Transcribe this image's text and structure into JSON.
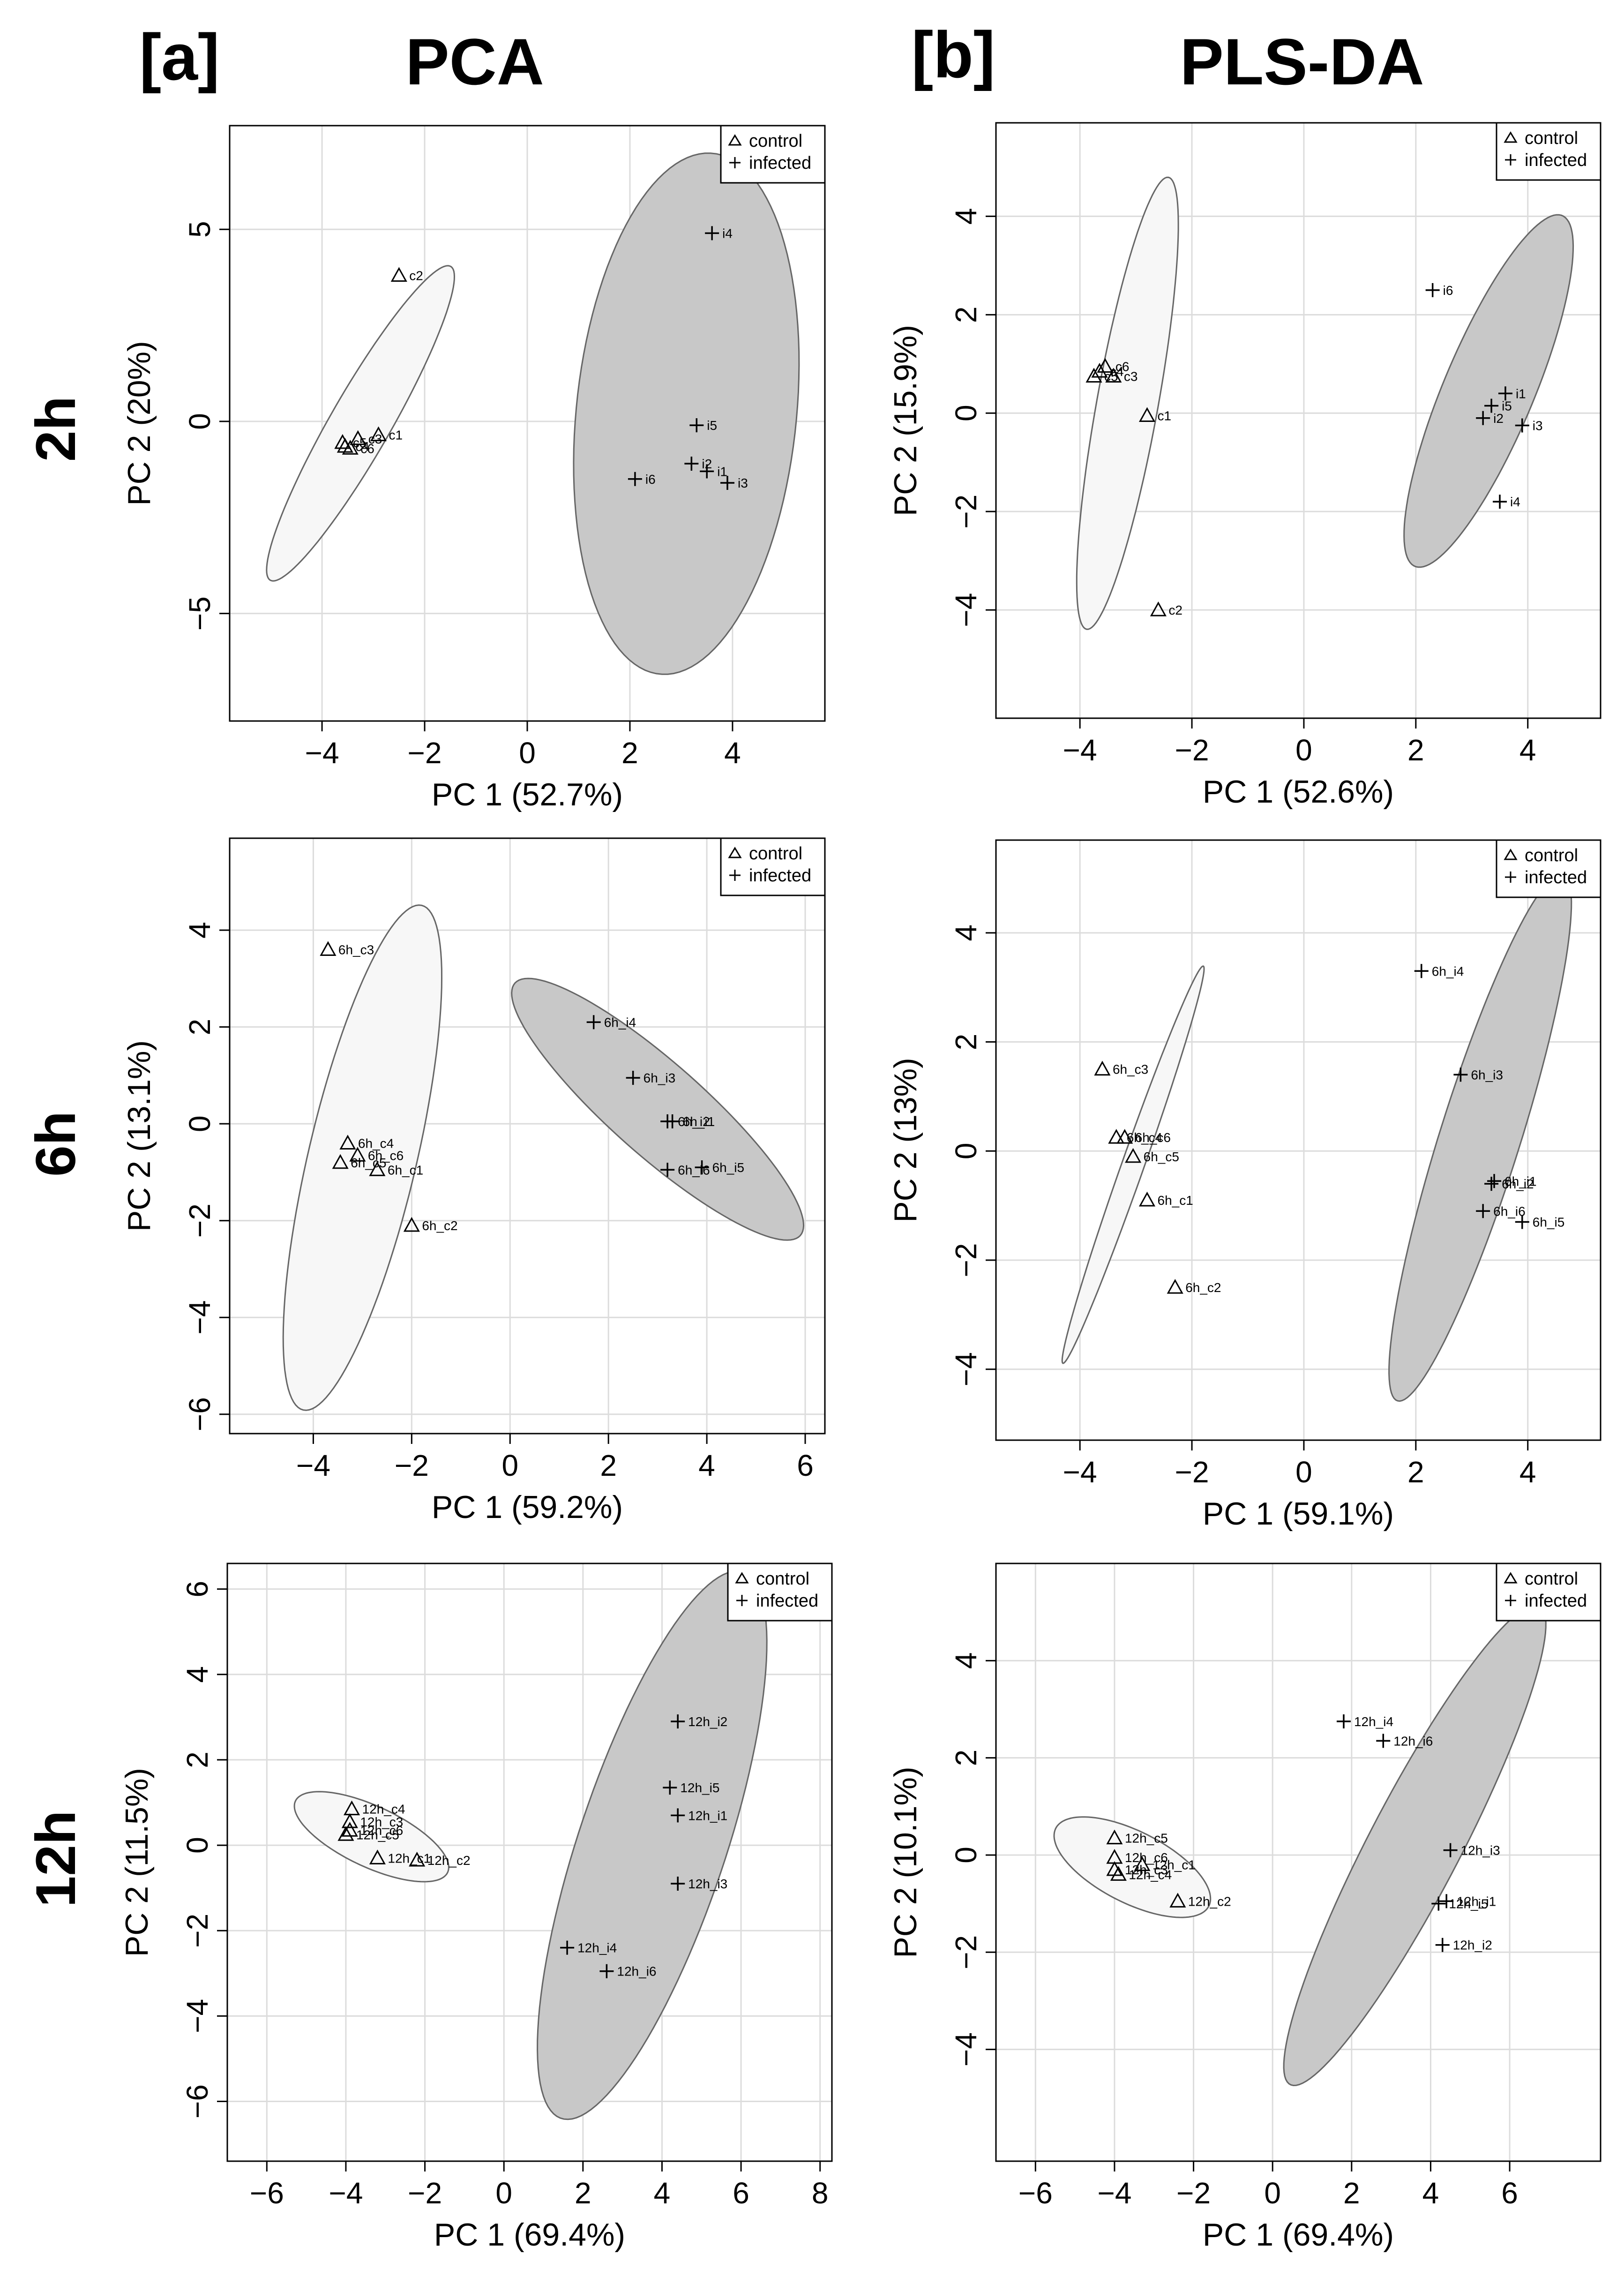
{
  "figure": {
    "headers": {
      "a_tag": "[a]",
      "a_title": "PCA",
      "b_tag": "[b]",
      "b_title": "PLS-DA"
    },
    "row_labels": [
      "2h",
      "6h",
      "12h"
    ]
  },
  "legend": {
    "control": "control",
    "infected": "infected"
  },
  "colors": {
    "control_fill": "#f7f7f7",
    "infected_fill": "#c8c8c8",
    "ellipse_stroke": "#666666",
    "grid": "#dcdcdc"
  },
  "chart_data": [
    {
      "type": "scatter",
      "id": "pca_2h",
      "xlabel": "PC 1 (52.7%)",
      "ylabel": "PC 2 (20%)",
      "xlim": [
        -5.8,
        5.8
      ],
      "ylim": [
        -7.8,
        7.7
      ],
      "xticks": [
        -4,
        -2,
        0,
        2,
        4
      ],
      "yticks": [
        -5,
        0,
        5
      ],
      "xtick_labels": [
        "−4",
        "−2",
        "0",
        "2",
        "4"
      ],
      "ytick_labels": [
        "−5",
        "0",
        "5"
      ],
      "groups": [
        {
          "name": "control",
          "marker": "triangle",
          "ellipse": {
            "cx": -3.25,
            "cy": -0.05,
            "rx": 4.45,
            "ry": 0.62,
            "angle": 67
          },
          "points": [
            {
              "label": "c1",
              "x": -2.9,
              "y": -0.35
            },
            {
              "label": "c2",
              "x": -2.5,
              "y": 3.8
            },
            {
              "label": "c3",
              "x": -3.3,
              "y": -0.45
            },
            {
              "label": "c4",
              "x": -3.55,
              "y": -0.65
            },
            {
              "label": "c5",
              "x": -3.6,
              "y": -0.55
            },
            {
              "label": "c6",
              "x": -3.45,
              "y": -0.7
            }
          ]
        },
        {
          "name": "infected",
          "marker": "plus",
          "ellipse": {
            "cx": 3.1,
            "cy": 0.2,
            "rx": 6.8,
            "ry": 2.15,
            "angle": 86
          },
          "points": [
            {
              "label": "i1",
              "x": 3.5,
              "y": -1.3
            },
            {
              "label": "i2",
              "x": 3.2,
              "y": -1.1
            },
            {
              "label": "i3",
              "x": 3.9,
              "y": -1.6
            },
            {
              "label": "i4",
              "x": 3.6,
              "y": 4.9
            },
            {
              "label": "i5",
              "x": 3.3,
              "y": -0.1
            },
            {
              "label": "i6",
              "x": 2.1,
              "y": -1.5
            }
          ]
        }
      ]
    },
    {
      "type": "scatter",
      "id": "plsda_2h",
      "xlabel": "PC 1 (52.6%)",
      "ylabel": "PC 2 (15.9%)",
      "xlim": [
        -5.5,
        5.3
      ],
      "ylim": [
        -6.2,
        5.9
      ],
      "xticks": [
        -4,
        -2,
        0,
        2,
        4
      ],
      "yticks": [
        -4,
        -2,
        0,
        2,
        4
      ],
      "xtick_labels": [
        "−4",
        "−2",
        "0",
        "2",
        "4"
      ],
      "ytick_labels": [
        "−4",
        "−2",
        "0",
        "2",
        "4"
      ],
      "groups": [
        {
          "name": "control",
          "marker": "triangle",
          "ellipse": {
            "cx": -3.15,
            "cy": 0.2,
            "rx": 4.65,
            "ry": 0.55,
            "angle": 81
          },
          "points": [
            {
              "label": "c1",
              "x": -2.8,
              "y": -0.05
            },
            {
              "label": "c2",
              "x": -2.6,
              "y": -4.0
            },
            {
              "label": "c3",
              "x": -3.4,
              "y": 0.75
            },
            {
              "label": "c4",
              "x": -3.65,
              "y": 0.85
            },
            {
              "label": "c5",
              "x": -3.75,
              "y": 0.75
            },
            {
              "label": "c6",
              "x": -3.55,
              "y": 0.95
            }
          ]
        },
        {
          "name": "infected",
          "marker": "plus",
          "ellipse": {
            "cx": 3.3,
            "cy": 0.45,
            "rx": 3.8,
            "ry": 0.82,
            "angle": 70
          },
          "points": [
            {
              "label": "i1",
              "x": 3.6,
              "y": 0.4
            },
            {
              "label": "i2",
              "x": 3.2,
              "y": -0.1
            },
            {
              "label": "i3",
              "x": 3.9,
              "y": -0.25
            },
            {
              "label": "i4",
              "x": 3.5,
              "y": -1.8
            },
            {
              "label": "i5",
              "x": 3.35,
              "y": 0.15
            },
            {
              "label": "i6",
              "x": 2.3,
              "y": 2.5
            }
          ]
        }
      ]
    },
    {
      "type": "scatter",
      "id": "pca_6h",
      "xlabel": "PC 1 (59.2%)",
      "ylabel": "PC 2 (13.1%)",
      "xlim": [
        -5.7,
        6.4
      ],
      "ylim": [
        -6.4,
        5.9
      ],
      "xticks": [
        -4,
        -2,
        0,
        2,
        4,
        6
      ],
      "yticks": [
        -6,
        -4,
        -2,
        0,
        2,
        4
      ],
      "xtick_labels": [
        "−4",
        "−2",
        "0",
        "2",
        "4",
        "6"
      ],
      "ytick_labels": [
        "−6",
        "−4",
        "−2",
        "0",
        "2",
        "4"
      ],
      "groups": [
        {
          "name": "control",
          "marker": "triangle",
          "ellipse": {
            "cx": -3.0,
            "cy": -0.7,
            "rx": 5.35,
            "ry": 1.1,
            "angle": 77
          },
          "points": [
            {
              "label": "6h_c1",
              "x": -2.7,
              "y": -0.95
            },
            {
              "label": "6h_c2",
              "x": -2.0,
              "y": -2.1
            },
            {
              "label": "6h_c3",
              "x": -3.7,
              "y": 3.6
            },
            {
              "label": "6h_c4",
              "x": -3.3,
              "y": -0.4
            },
            {
              "label": "6h_c5",
              "x": -3.45,
              "y": -0.8
            },
            {
              "label": "6h_c6",
              "x": -3.1,
              "y": -0.65
            }
          ]
        },
        {
          "name": "infected",
          "marker": "plus",
          "ellipse": {
            "cx": 3.0,
            "cy": 0.3,
            "rx": 3.9,
            "ry": 0.95,
            "angle": -42
          },
          "points": [
            {
              "label": "6h_i1",
              "x": 3.3,
              "y": 0.05
            },
            {
              "label": "6h_i2",
              "x": 3.2,
              "y": 0.05
            },
            {
              "label": "6h_i3",
              "x": 2.5,
              "y": 0.95
            },
            {
              "label": "6h_i4",
              "x": 1.7,
              "y": 2.1
            },
            {
              "label": "6h_i5",
              "x": 3.9,
              "y": -0.9
            },
            {
              "label": "6h_i6",
              "x": 3.2,
              "y": -0.95
            }
          ]
        }
      ]
    },
    {
      "type": "scatter",
      "id": "plsda_6h",
      "xlabel": "PC 1 (59.1%)",
      "ylabel": "PC 2 (13%)",
      "xlim": [
        -5.5,
        5.3
      ],
      "ylim": [
        -5.3,
        5.7
      ],
      "xticks": [
        -4,
        -2,
        0,
        2,
        4
      ],
      "yticks": [
        -4,
        -2,
        0,
        2,
        4
      ],
      "xtick_labels": [
        "−4",
        "−2",
        "0",
        "2",
        "4"
      ],
      "ytick_labels": [
        "−4",
        "−2",
        "0",
        "2",
        "4"
      ],
      "groups": [
        {
          "name": "control",
          "marker": "triangle",
          "ellipse": {
            "cx": -3.05,
            "cy": -0.25,
            "rx": 3.85,
            "ry": 0.2,
            "angle": 71
          },
          "points": [
            {
              "label": "6h_c1",
              "x": -2.8,
              "y": -0.9
            },
            {
              "label": "6h_c2",
              "x": -2.3,
              "y": -2.5
            },
            {
              "label": "6h_c3",
              "x": -3.6,
              "y": 1.5
            },
            {
              "label": "6h_c4",
              "x": -3.35,
              "y": 0.25
            },
            {
              "label": "6h_c5",
              "x": -3.05,
              "y": -0.1
            },
            {
              "label": "6h_c6",
              "x": -3.2,
              "y": 0.25
            }
          ]
        },
        {
          "name": "infected",
          "marker": "plus",
          "ellipse": {
            "cx": 3.15,
            "cy": 0.25,
            "rx": 5.05,
            "ry": 0.72,
            "angle": 73
          },
          "points": [
            {
              "label": "6h_i1",
              "x": 3.4,
              "y": -0.55
            },
            {
              "label": "6h_i2",
              "x": 3.35,
              "y": -0.6
            },
            {
              "label": "6h_i3",
              "x": 2.8,
              "y": 1.4
            },
            {
              "label": "6h_i4",
              "x": 2.1,
              "y": 3.3
            },
            {
              "label": "6h_i5",
              "x": 3.9,
              "y": -1.3
            },
            {
              "label": "6h_i6",
              "x": 3.2,
              "y": -1.1
            }
          ]
        }
      ]
    },
    {
      "type": "scatter",
      "id": "pca_12h",
      "xlabel": "PC 1 (69.4%)",
      "ylabel": "PC 2 (11.5%)",
      "xlim": [
        -7.0,
        8.3
      ],
      "ylim": [
        -7.4,
        6.6
      ],
      "xticks": [
        -6,
        -4,
        -2,
        0,
        2,
        4,
        6,
        8
      ],
      "yticks": [
        -6,
        -4,
        -2,
        0,
        2,
        4,
        6
      ],
      "xtick_labels": [
        "−6",
        "−4",
        "−2",
        "0",
        "2",
        "4",
        "6",
        "8"
      ],
      "ytick_labels": [
        "−6",
        "−4",
        "−2",
        "0",
        "2",
        "4",
        "6"
      ],
      "groups": [
        {
          "name": "control",
          "marker": "triangle",
          "ellipse": {
            "cx": -3.35,
            "cy": 0.2,
            "rx": 2.1,
            "ry": 0.72,
            "angle": -23
          },
          "points": [
            {
              "label": "12h_c1",
              "x": -3.2,
              "y": -0.3
            },
            {
              "label": "12h_c2",
              "x": -2.2,
              "y": -0.35
            },
            {
              "label": "12h_c3",
              "x": -3.9,
              "y": 0.55
            },
            {
              "label": "12h_c4",
              "x": -3.85,
              "y": 0.85
            },
            {
              "label": "12h_c5",
              "x": -4.0,
              "y": 0.25
            },
            {
              "label": "12h_c6",
              "x": -3.9,
              "y": 0.35
            }
          ]
        },
        {
          "name": "infected",
          "marker": "plus",
          "ellipse": {
            "cx": 3.75,
            "cy": 0.0,
            "rx": 6.8,
            "ry": 1.85,
            "angle": 70
          },
          "points": [
            {
              "label": "12h_i1",
              "x": 4.4,
              "y": 0.7
            },
            {
              "label": "12h_i2",
              "x": 4.4,
              "y": 2.9
            },
            {
              "label": "12h_i3",
              "x": 4.4,
              "y": -0.9
            },
            {
              "label": "12h_i4",
              "x": 1.6,
              "y": -2.4
            },
            {
              "label": "12h_i5",
              "x": 4.2,
              "y": 1.35
            },
            {
              "label": "12h_i6",
              "x": 2.6,
              "y": -2.95
            }
          ]
        }
      ]
    },
    {
      "type": "scatter",
      "id": "plsda_12h",
      "xlabel": "PC 1 (69.4%)",
      "ylabel": "PC 2 (10.1%)",
      "xlim": [
        -7.0,
        8.3
      ],
      "ylim": [
        -6.3,
        6.0
      ],
      "xticks": [
        -6,
        -4,
        -2,
        0,
        2,
        4,
        6
      ],
      "yticks": [
        -4,
        -2,
        0,
        2,
        4
      ],
      "xtick_labels": [
        "−6",
        "−4",
        "−2",
        "0",
        "2",
        "4",
        "6"
      ],
      "ytick_labels": [
        "−4",
        "−2",
        "0",
        "2",
        "4"
      ],
      "groups": [
        {
          "name": "control",
          "marker": "triangle",
          "ellipse": {
            "cx": -3.55,
            "cy": -0.25,
            "rx": 2.1,
            "ry": 0.76,
            "angle": -21
          },
          "points": [
            {
              "label": "12h_c1",
              "x": -3.3,
              "y": -0.2
            },
            {
              "label": "12h_c2",
              "x": -2.4,
              "y": -0.95
            },
            {
              "label": "12h_c3",
              "x": -4.0,
              "y": -0.3
            },
            {
              "label": "12h_c4",
              "x": -3.9,
              "y": -0.4
            },
            {
              "label": "12h_c5",
              "x": -4.0,
              "y": 0.35
            },
            {
              "label": "12h_c6",
              "x": -4.0,
              "y": -0.05
            }
          ]
        },
        {
          "name": "infected",
          "marker": "plus",
          "ellipse": {
            "cx": 3.6,
            "cy": 0.2,
            "rx": 5.85,
            "ry": 1.1,
            "angle": 57
          },
          "points": [
            {
              "label": "12h_i1",
              "x": 4.4,
              "y": -0.95
            },
            {
              "label": "12h_i2",
              "x": 4.3,
              "y": -1.85
            },
            {
              "label": "12h_i3",
              "x": 4.5,
              "y": 0.1
            },
            {
              "label": "12h_i4",
              "x": 1.8,
              "y": 2.75
            },
            {
              "label": "12h_i5",
              "x": 4.2,
              "y": -1.0
            },
            {
              "label": "12h_i6",
              "x": 2.8,
              "y": 2.35
            }
          ]
        }
      ]
    }
  ]
}
